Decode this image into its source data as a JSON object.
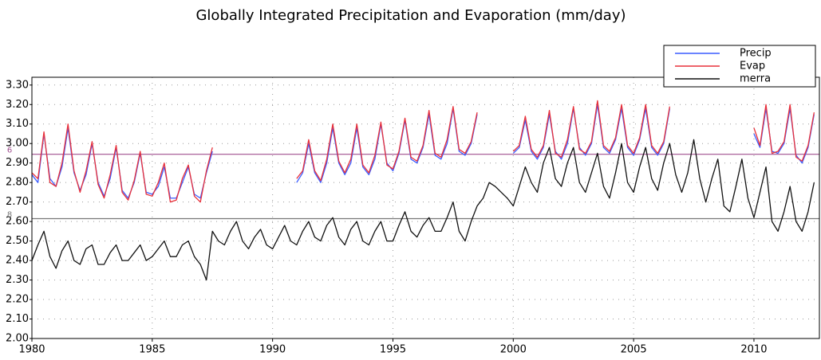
{
  "chart_data": {
    "type": "line",
    "title": "Globally Integrated Precipitation and Evaporation (mm/day)",
    "x": [
      1980,
      1980.25,
      1980.5,
      1980.75,
      1981,
      1981.25,
      1981.5,
      1981.75,
      1982,
      1982.25,
      1982.5,
      1982.75,
      1983,
      1983.25,
      1983.5,
      1983.75,
      1984,
      1984.25,
      1984.5,
      1984.75,
      1985,
      1985.25,
      1985.5,
      1985.75,
      1986,
      1986.25,
      1986.5,
      1986.75,
      1987,
      1987.25,
      1987.5,
      1987.75,
      1988,
      1988.25,
      1988.5,
      1988.75,
      1989,
      1989.25,
      1989.5,
      1989.75,
      1990,
      1990.25,
      1990.5,
      1990.75,
      1991,
      1991.25,
      1991.5,
      1991.75,
      1992,
      1992.25,
      1992.5,
      1992.75,
      1993,
      1993.25,
      1993.5,
      1993.75,
      1994,
      1994.25,
      1994.5,
      1994.75,
      1995,
      1995.25,
      1995.5,
      1995.75,
      1996,
      1996.25,
      1996.5,
      1996.75,
      1997,
      1997.25,
      1997.5,
      1997.75,
      1998,
      1998.25,
      1998.5,
      1998.75,
      1999,
      1999.25,
      1999.5,
      1999.75,
      2000,
      2000.25,
      2000.5,
      2000.75,
      2001,
      2001.25,
      2001.5,
      2001.75,
      2002,
      2002.25,
      2002.5,
      2002.75,
      2003,
      2003.25,
      2003.5,
      2003.75,
      2004,
      2004.25,
      2004.5,
      2004.75,
      2005,
      2005.25,
      2005.5,
      2005.75,
      2006,
      2006.25,
      2006.5,
      2006.75,
      2007,
      2007.25,
      2007.5,
      2007.75,
      2008,
      2008.25,
      2008.5,
      2008.75,
      2009,
      2009.25,
      2009.5,
      2009.75,
      2010,
      2010.25,
      2010.5,
      2010.75,
      2011,
      2011.25,
      2011.5,
      2011.75,
      2012,
      2012.25,
      2012.5
    ],
    "series": [
      {
        "name": "Precip",
        "color": "#3a5cff",
        "values": [
          2.84,
          2.8,
          3.05,
          2.82,
          2.78,
          2.88,
          3.08,
          2.85,
          2.76,
          2.84,
          3.0,
          2.8,
          2.73,
          2.82,
          2.98,
          2.76,
          2.72,
          2.8,
          2.95,
          2.75,
          2.74,
          2.78,
          2.88,
          2.72,
          2.72,
          2.8,
          2.88,
          2.74,
          2.72,
          2.85,
          2.96,
          null,
          null,
          null,
          null,
          null,
          null,
          null,
          null,
          null,
          null,
          null,
          null,
          null,
          2.8,
          2.85,
          3.0,
          2.85,
          2.8,
          2.9,
          3.08,
          2.9,
          2.84,
          2.9,
          3.08,
          2.88,
          2.84,
          2.92,
          3.1,
          2.9,
          2.86,
          2.95,
          3.12,
          2.92,
          2.9,
          2.98,
          3.15,
          2.94,
          2.92,
          3.0,
          3.18,
          2.96,
          2.94,
          3.0,
          3.15,
          null,
          null,
          null,
          null,
          null,
          2.95,
          2.98,
          3.12,
          2.96,
          2.92,
          2.98,
          3.15,
          2.96,
          2.92,
          3.0,
          3.18,
          2.98,
          2.94,
          3.0,
          3.2,
          2.98,
          2.95,
          3.02,
          3.18,
          2.98,
          2.94,
          3.02,
          3.18,
          2.98,
          2.94,
          3.0,
          3.18,
          null,
          null,
          null,
          null,
          null,
          null,
          null,
          null,
          null,
          null,
          null,
          null,
          null,
          3.05,
          2.98,
          3.18,
          2.96,
          2.95,
          3.0,
          3.18,
          2.94,
          2.9,
          2.98,
          3.15
        ]
      },
      {
        "name": "Evap",
        "color": "#e8303a",
        "values": [
          2.85,
          2.82,
          3.06,
          2.8,
          2.78,
          2.9,
          3.1,
          2.86,
          2.75,
          2.86,
          3.01,
          2.79,
          2.72,
          2.84,
          2.99,
          2.75,
          2.71,
          2.81,
          2.96,
          2.74,
          2.73,
          2.8,
          2.9,
          2.7,
          2.71,
          2.82,
          2.89,
          2.73,
          2.7,
          2.86,
          2.98,
          null,
          null,
          null,
          null,
          null,
          null,
          null,
          null,
          null,
          null,
          null,
          null,
          null,
          2.82,
          2.86,
          3.02,
          2.86,
          2.81,
          2.92,
          3.1,
          2.91,
          2.85,
          2.92,
          3.1,
          2.89,
          2.85,
          2.94,
          3.11,
          2.89,
          2.87,
          2.96,
          3.13,
          2.93,
          2.91,
          2.99,
          3.17,
          2.95,
          2.93,
          3.02,
          3.19,
          2.97,
          2.95,
          3.01,
          3.16,
          null,
          null,
          null,
          null,
          null,
          2.96,
          2.99,
          3.14,
          2.97,
          2.93,
          2.99,
          3.17,
          2.95,
          2.93,
          3.02,
          3.19,
          2.97,
          2.95,
          3.01,
          3.22,
          2.99,
          2.96,
          3.03,
          3.2,
          2.99,
          2.95,
          3.03,
          3.2,
          2.99,
          2.95,
          3.01,
          3.19,
          null,
          null,
          null,
          null,
          null,
          null,
          null,
          null,
          null,
          null,
          null,
          null,
          null,
          3.08,
          2.99,
          3.2,
          2.95,
          2.96,
          3.01,
          3.2,
          2.93,
          2.91,
          2.99,
          3.16
        ]
      },
      {
        "name": "merra",
        "color": "#111111",
        "values": [
          2.4,
          2.48,
          2.55,
          2.42,
          2.36,
          2.45,
          2.5,
          2.4,
          2.38,
          2.46,
          2.48,
          2.38,
          2.38,
          2.44,
          2.48,
          2.4,
          2.4,
          2.44,
          2.48,
          2.4,
          2.42,
          2.46,
          2.5,
          2.42,
          2.42,
          2.48,
          2.5,
          2.42,
          2.38,
          2.3,
          2.55,
          2.5,
          2.48,
          2.55,
          2.6,
          2.5,
          2.46,
          2.52,
          2.56,
          2.48,
          2.46,
          2.52,
          2.58,
          2.5,
          2.48,
          2.55,
          2.6,
          2.52,
          2.5,
          2.58,
          2.62,
          2.52,
          2.48,
          2.56,
          2.6,
          2.5,
          2.48,
          2.55,
          2.6,
          2.5,
          2.5,
          2.58,
          2.65,
          2.55,
          2.52,
          2.58,
          2.62,
          2.55,
          2.55,
          2.62,
          2.7,
          2.55,
          2.5,
          2.6,
          2.68,
          2.72,
          2.8,
          2.78,
          2.75,
          2.72,
          2.68,
          2.78,
          2.88,
          2.8,
          2.75,
          2.9,
          2.98,
          2.82,
          2.78,
          2.9,
          2.98,
          2.8,
          2.75,
          2.85,
          2.95,
          2.78,
          2.72,
          2.85,
          3.0,
          2.8,
          2.75,
          2.88,
          2.98,
          2.82,
          2.76,
          2.9,
          3.0,
          2.84,
          2.75,
          2.85,
          3.02,
          2.82,
          2.7,
          2.82,
          2.92,
          2.68,
          2.65,
          2.78,
          2.92,
          2.72,
          2.62,
          2.75,
          2.88,
          2.6,
          2.55,
          2.65,
          2.78,
          2.6,
          2.55,
          2.65,
          2.8
        ]
      }
    ],
    "hlines": [
      {
        "value": 2.945,
        "label": "6",
        "color": "#a0508f"
      },
      {
        "value": 2.615,
        "label": "8",
        "color": "#777777"
      }
    ],
    "xlim": [
      1980,
      2012.72
    ],
    "ylim": [
      2.0,
      3.34
    ],
    "xticks": [
      1980,
      1985,
      1990,
      1995,
      2000,
      2005,
      2010
    ],
    "yticks": [
      {
        "value": 2.0,
        "label": "2.00"
      },
      {
        "value": 2.1,
        "label": "2.10"
      },
      {
        "value": 2.2,
        "label": "2.20"
      },
      {
        "value": 2.3,
        "label": "2.30"
      },
      {
        "value": 2.4,
        "label": "2.40"
      },
      {
        "value": 2.5,
        "label": "2.50"
      },
      {
        "value": 2.6,
        "label": "2.60"
      },
      {
        "value": 2.7,
        "label": "2.70"
      },
      {
        "value": 2.8,
        "label": "2.80"
      },
      {
        "value": 2.9,
        "label": "2.90"
      },
      {
        "value": 3.0,
        "label": "3.00"
      },
      {
        "value": 3.1,
        "label": "3.10"
      },
      {
        "value": 3.2,
        "label": "3.20"
      },
      {
        "value": 3.3,
        "label": "3.30"
      }
    ],
    "grid": true,
    "legend": "upper right"
  }
}
